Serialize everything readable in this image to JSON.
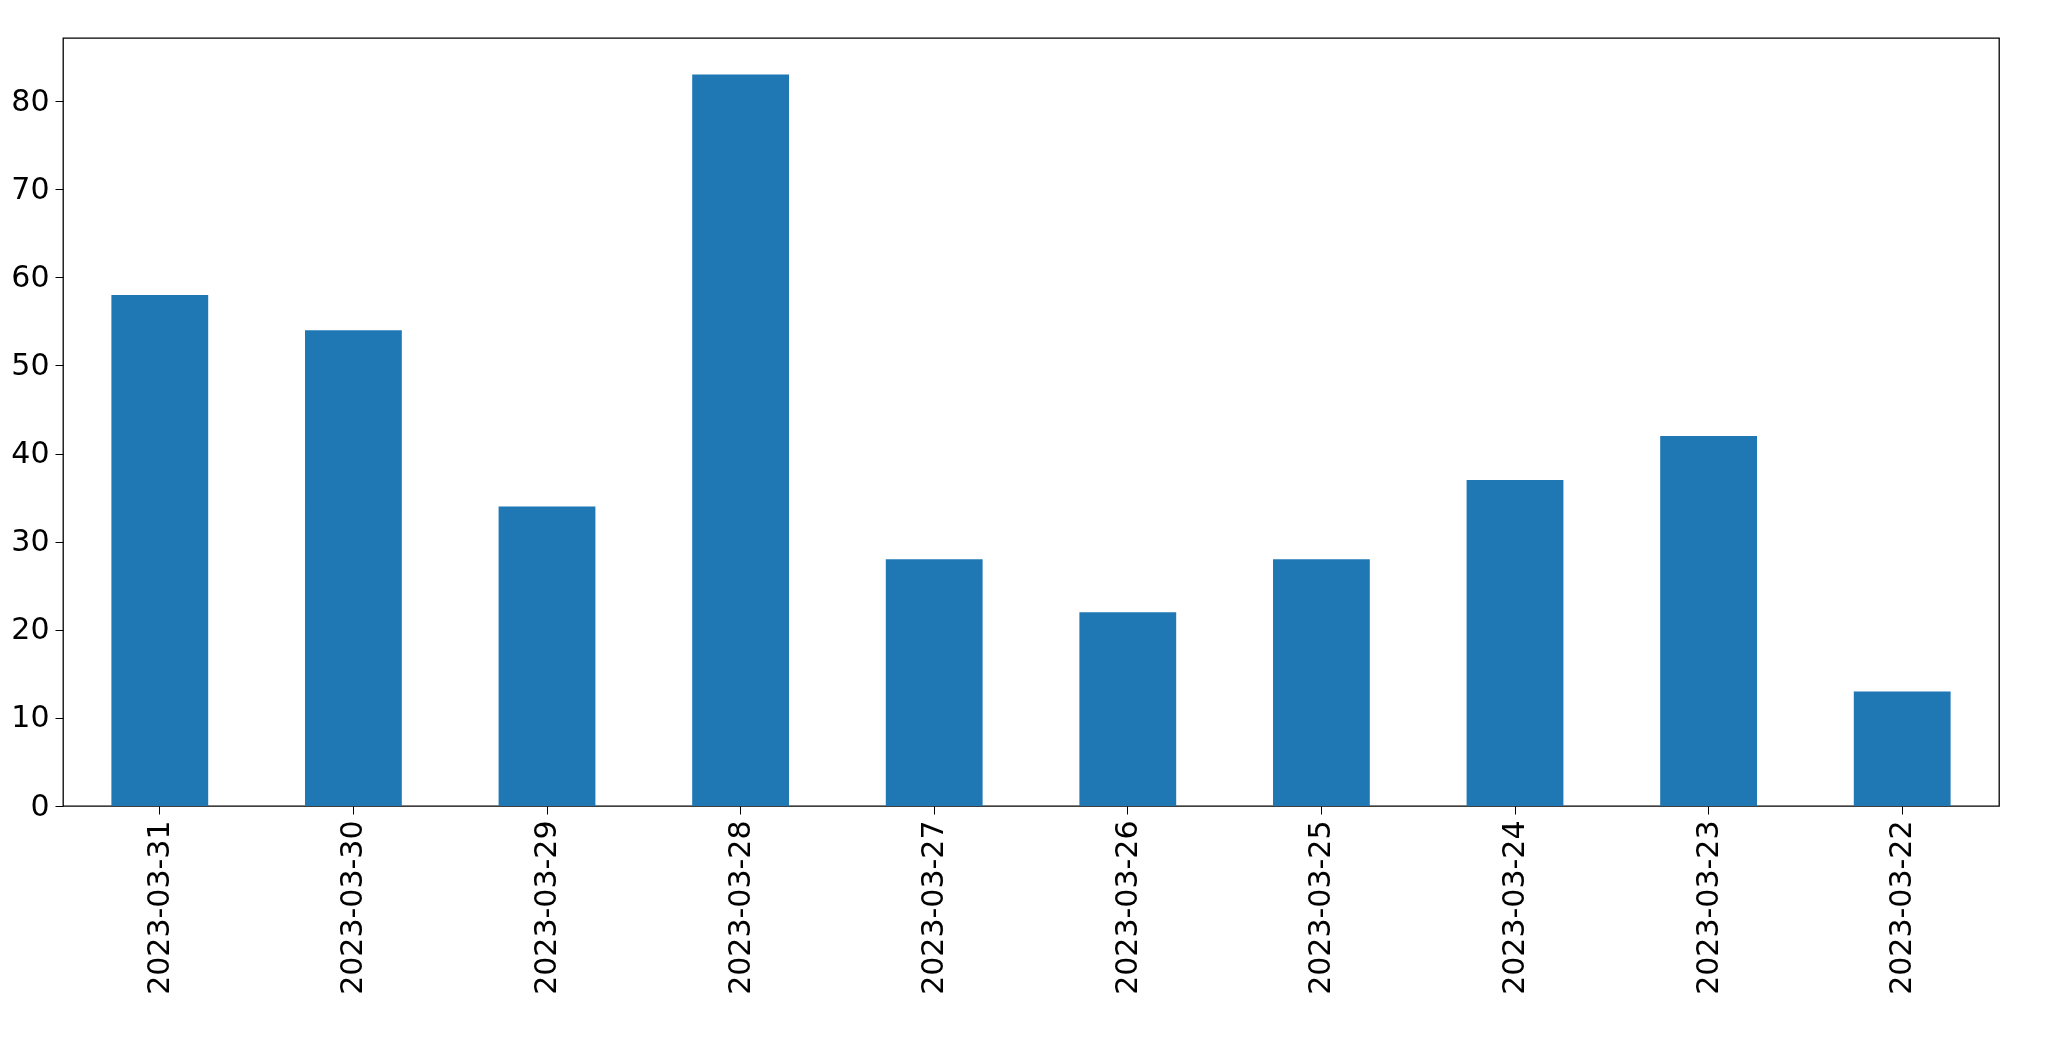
{
  "chart_data": {
    "type": "bar",
    "categories": [
      "2023-03-31",
      "2023-03-30",
      "2023-03-29",
      "2023-03-28",
      "2023-03-27",
      "2023-03-26",
      "2023-03-25",
      "2023-03-24",
      "2023-03-23",
      "2023-03-22"
    ],
    "values": [
      58,
      54,
      34,
      83,
      28,
      22,
      28,
      37,
      42,
      13
    ],
    "color": "#1f77b4",
    "ylim": [
      0,
      87.15
    ],
    "yticks": [
      0,
      10,
      20,
      30,
      40,
      50,
      60,
      70,
      80
    ],
    "grid": false
  }
}
